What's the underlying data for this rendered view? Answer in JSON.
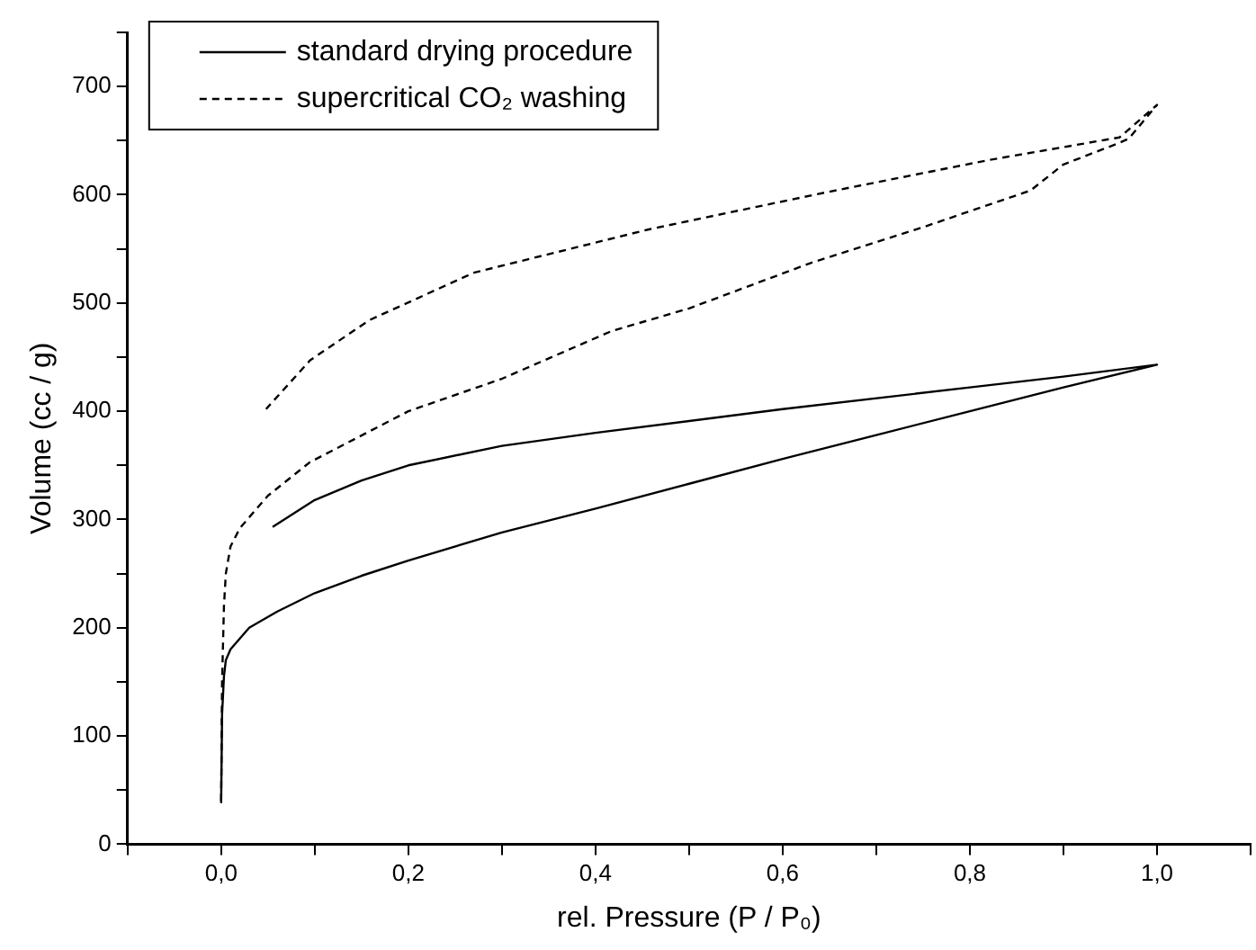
{
  "chart_data": {
    "type": "line",
    "xlabel": "rel. Pressure (P / P₀)",
    "ylabel": "Volume (cc / g)",
    "xlim": [
      -0.1,
      1.1
    ],
    "xticks": [
      {
        "value": -0.1,
        "label": null
      },
      {
        "value": 0,
        "label": "0,0"
      },
      {
        "value": 0.1,
        "label": null
      },
      {
        "value": 0.2,
        "label": "0,2"
      },
      {
        "value": 0.3,
        "label": null
      },
      {
        "value": 0.4,
        "label": "0,4"
      },
      {
        "value": 0.5,
        "label": null
      },
      {
        "value": 0.6,
        "label": "0,6"
      },
      {
        "value": 0.7,
        "label": null
      },
      {
        "value": 0.8,
        "label": "0,8"
      },
      {
        "value": 0.9,
        "label": null
      },
      {
        "value": 1,
        "label": "1,0"
      },
      {
        "value": 1.1,
        "label": null
      }
    ],
    "ylim": [
      0,
      750
    ],
    "yticks": [
      0,
      {
        "value": 50,
        "label": null
      },
      100,
      {
        "value": 150,
        "label": null
      },
      200,
      {
        "value": 250,
        "label": null
      },
      300,
      {
        "value": 350,
        "label": null
      },
      400,
      {
        "value": 450,
        "label": null
      },
      500,
      {
        "value": 550,
        "label": null
      },
      600,
      {
        "value": 650,
        "label": null
      },
      700,
      {
        "value": 750,
        "label": null
      }
    ],
    "grid": false,
    "legend": "top left",
    "marker": "none",
    "series": [
      {
        "name": "standard drying procedure",
        "color": "#000000",
        "line_style": "solid",
        "x": [
          0,
          0.001,
          0.003,
          0.005,
          0.01,
          0.03,
          0.06,
          0.1,
          0.15,
          0.2,
          0.3,
          0.4,
          0.5,
          0.6,
          0.7,
          0.8,
          0.9,
          1.0,
          0.9,
          0.8,
          0.6,
          0.4,
          0.3,
          0.2,
          0.15,
          0.1,
          0.055
        ],
        "values": [
          38,
          120,
          155,
          170,
          180,
          200,
          215,
          232,
          248,
          262,
          288,
          310,
          333,
          356,
          378,
          400,
          422,
          443,
          432,
          422,
          402,
          380,
          368,
          350,
          336,
          318,
          293
        ]
      },
      {
        "name": "supercritical CO₂ washing",
        "color": "#000000",
        "line_style": "dashed",
        "x": [
          0,
          0.001,
          0.003,
          0.005,
          0.01,
          0.02,
          0.05,
          0.095,
          0.2,
          0.3,
          0.417,
          0.5,
          0.63,
          0.75,
          0.865,
          0.9,
          0.96,
          0.97,
          1.0,
          0.96,
          0.82,
          0.645,
          0.457,
          0.27,
          0.158,
          0.095,
          0.048
        ],
        "values": [
          40,
          150,
          220,
          250,
          275,
          292,
          322,
          353,
          400,
          430,
          474,
          495,
          537,
          570,
          604,
          628,
          648,
          652,
          683,
          653,
          632,
          602,
          568,
          528,
          484,
          447,
          402
        ]
      }
    ]
  }
}
